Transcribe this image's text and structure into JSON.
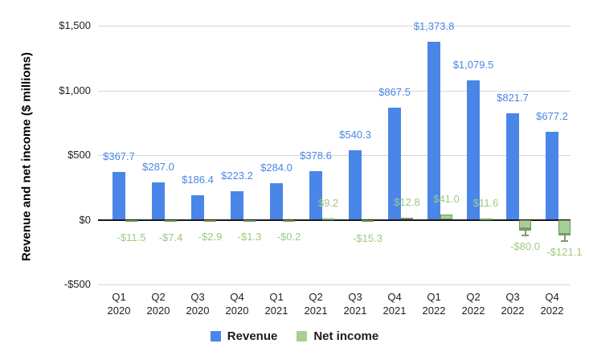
{
  "chart_data": {
    "type": "bar",
    "title": "",
    "xlabel": "",
    "ylabel": "Revenue and net income ($ millions)",
    "ylim": [
      -500,
      1500
    ],
    "grid": true,
    "legend_position": "bottom",
    "categories": [
      "Q1 2020",
      "Q2 2020",
      "Q3 2020",
      "Q4 2020",
      "Q1 2021",
      "Q2 2021",
      "Q3 2021",
      "Q4 2021",
      "Q1 2022",
      "Q2 2022",
      "Q3 2022",
      "Q4 2022"
    ],
    "y_ticks": [
      {
        "value": 1500,
        "label": "$1,500"
      },
      {
        "value": 1000,
        "label": "$1,000"
      },
      {
        "value": 500,
        "label": "$500"
      },
      {
        "value": 0,
        "label": "$0"
      },
      {
        "value": -500,
        "label": "-$500"
      }
    ],
    "series": [
      {
        "name": "Revenue",
        "color": "#4a86e8",
        "label_color": "#4a86e8",
        "values": [
          367.7,
          287.0,
          186.4,
          223.2,
          284.0,
          378.6,
          540.3,
          867.5,
          1373.8,
          1079.5,
          821.7,
          677.2
        ],
        "labels": [
          "$367.7",
          "$287.0",
          "$186.4",
          "$223.2",
          "$284.0",
          "$378.6",
          "$540.3",
          "$867.5",
          "$1,373.8",
          "$1,079.5",
          "$821.7",
          "$677.2"
        ]
      },
      {
        "name": "Net income",
        "color": "#a8ce98",
        "border_color": "#6e9b55",
        "label_color": "#9ec981",
        "values": [
          -11.5,
          -7.4,
          -2.9,
          -1.3,
          -0.2,
          9.2,
          -15.3,
          12.8,
          41.0,
          11.6,
          -80.0,
          -121.1
        ],
        "labels": [
          "-$11.5",
          "-$7.4",
          "-$2.9",
          "-$1.3",
          "-$0.2",
          "$9.2",
          "-$15.3",
          "$12.8",
          "$41.0",
          "$11.6",
          "-$80.0",
          "-$121.1"
        ],
        "whisker_indices": [
          10,
          11
        ],
        "whisker_color": "#7e9a6b"
      }
    ]
  }
}
